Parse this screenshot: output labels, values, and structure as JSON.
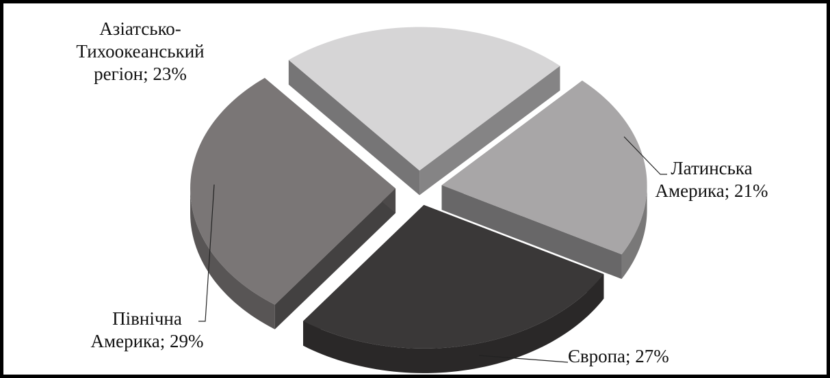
{
  "chart_data": {
    "type": "pie",
    "title": "",
    "slices": [
      {
        "name": "Азіатсько-Тихоокеанський регіон",
        "value": 23,
        "color": "#d6d5d6"
      },
      {
        "name": "Латинська Америка",
        "value": 21,
        "color": "#a8a6a7"
      },
      {
        "name": "Європа",
        "value": 27,
        "color": "#3a3838"
      },
      {
        "name": "Північна Америка",
        "value": 29,
        "color": "#7a7676"
      }
    ],
    "labels": {
      "ap": [
        "Азіатсько-",
        "Тихоокеанський",
        "регіон; 23%"
      ],
      "la": [
        "Латинська",
        "Америка; 21%"
      ],
      "na": [
        "Північна",
        "Америка; 29%"
      ],
      "eu": [
        "Європа; 27%"
      ]
    },
    "legend": "none"
  }
}
